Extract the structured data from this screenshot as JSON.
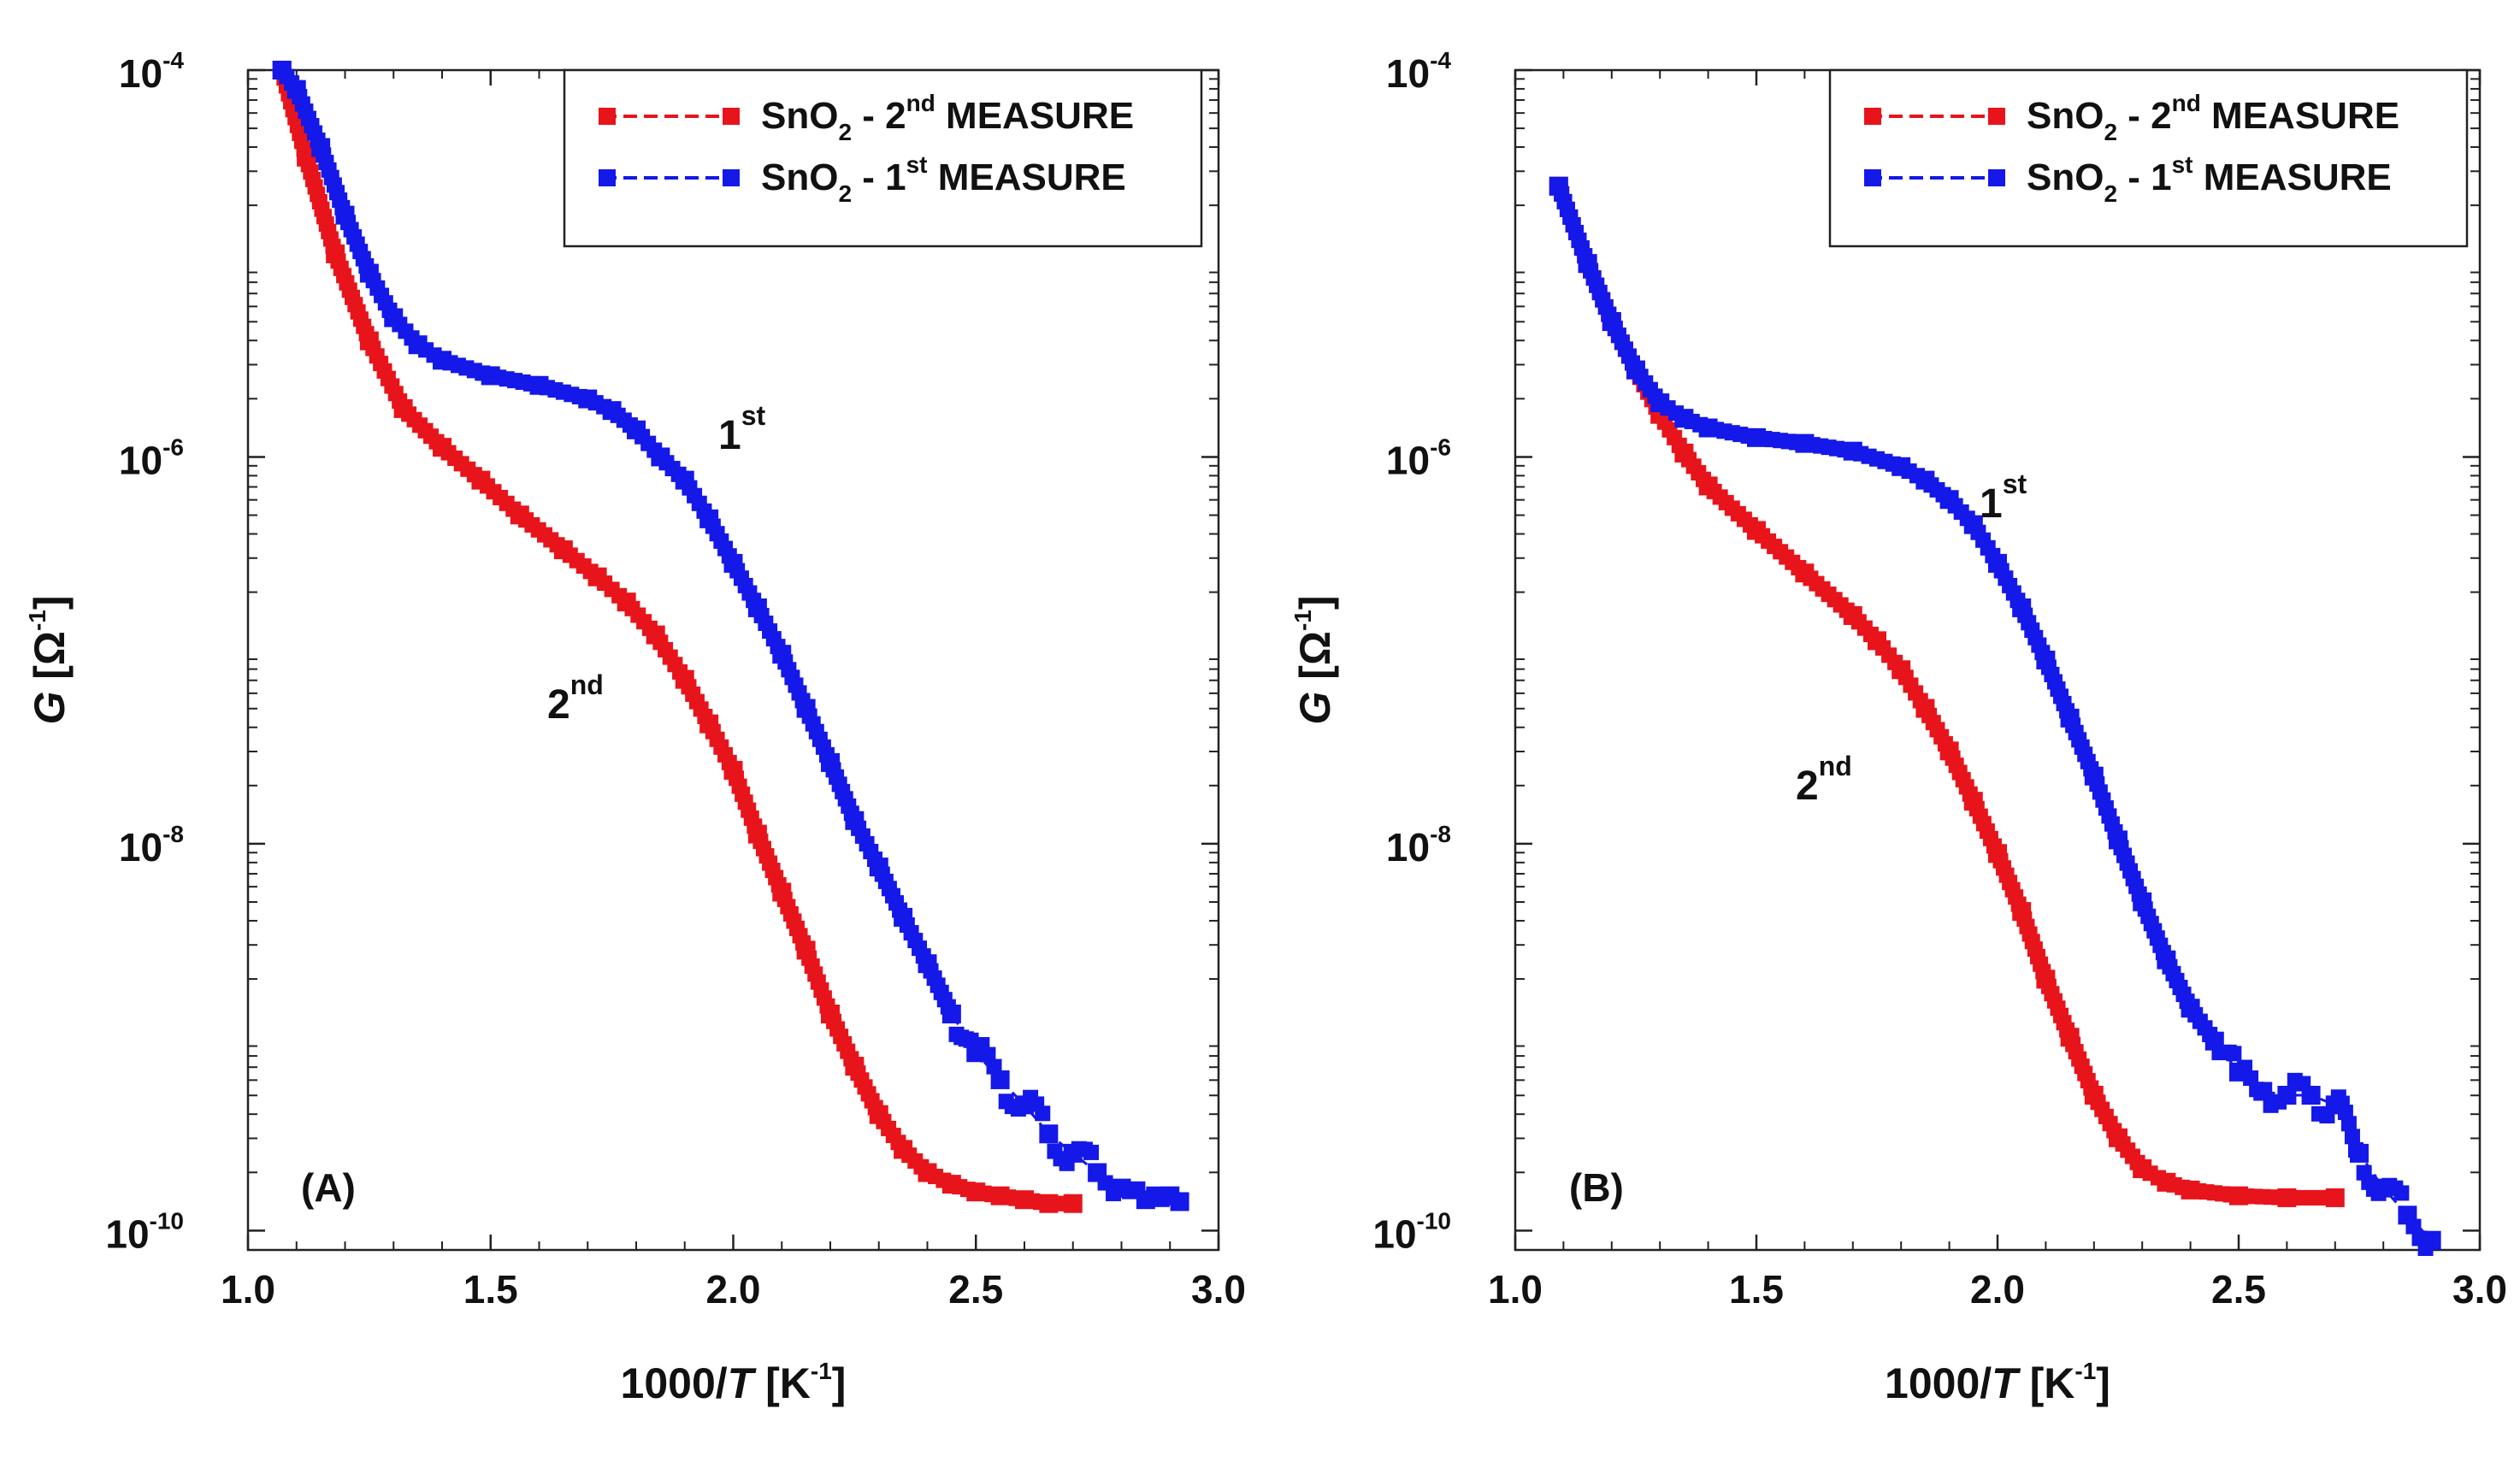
{
  "chart_data": [
    {
      "type": "scatter",
      "panel_label": "(A)",
      "xlabel": {
        "main": "1000/",
        "italic": "T",
        "unit_open": " [K",
        "unit_exp": "-1",
        "unit_close": "]"
      },
      "ylabel": {
        "main": "G",
        "unit_open": " [Ω",
        "unit_exp": "-1",
        "unit_close": "]"
      },
      "x_ticks": [
        "1.0",
        "1.5",
        "2.0",
        "2.5",
        "3.0"
      ],
      "y_ticks": [
        {
          "base": "10",
          "exp": "-4"
        },
        {
          "base": "10",
          "exp": "-6"
        },
        {
          "base": "10",
          "exp": "-8"
        },
        {
          "base": "10",
          "exp": "-10"
        }
      ],
      "xlim": [
        1.0,
        3.0
      ],
      "ylim_log10": [
        -10.1,
        -4.0
      ],
      "series": [
        {
          "name": "SnO2 - 2nd MEASURE",
          "legend": {
            "pre": "SnO",
            "sub": "2",
            "mid": " - 2",
            "sup": "nd",
            "post": " MEASURE"
          },
          "color": "#e8141b",
          "x": [
            1.07,
            1.12,
            1.18,
            1.25,
            1.32,
            1.4,
            1.48,
            1.56,
            1.65,
            1.72,
            1.78,
            1.84,
            1.9,
            1.95,
            2.0,
            2.05,
            2.1,
            2.15,
            2.2,
            2.25,
            2.3,
            2.35,
            2.4,
            2.45,
            2.5,
            2.55,
            2.6,
            2.65,
            2.7
          ],
          "log10_y": [
            -4.0,
            -4.45,
            -4.95,
            -5.4,
            -5.75,
            -5.95,
            -6.12,
            -6.3,
            -6.48,
            -6.62,
            -6.75,
            -6.92,
            -7.15,
            -7.38,
            -7.62,
            -7.95,
            -8.25,
            -8.55,
            -8.88,
            -9.15,
            -9.4,
            -9.58,
            -9.7,
            -9.76,
            -9.8,
            -9.82,
            -9.84,
            -9.86,
            -9.86
          ]
        },
        {
          "name": "SnO2 - 1st MEASURE",
          "legend": {
            "pre": "SnO",
            "sub": "2",
            "mid": " - 1",
            "sup": "st",
            "post": " MEASURE"
          },
          "color": "#1418e8",
          "x": [
            1.07,
            1.1,
            1.15,
            1.2,
            1.25,
            1.3,
            1.35,
            1.4,
            1.5,
            1.6,
            1.7,
            1.75,
            1.8,
            1.85,
            1.9,
            1.95,
            2.0,
            2.05,
            2.1,
            2.15,
            2.2,
            2.25,
            2.3,
            2.35,
            2.4,
            2.45,
            2.5,
            2.55,
            2.6,
            2.65,
            2.7,
            2.75,
            2.8,
            2.85,
            2.9,
            2.92
          ],
          "log10_y": [
            -4.0,
            -4.1,
            -4.4,
            -4.75,
            -5.05,
            -5.28,
            -5.42,
            -5.5,
            -5.58,
            -5.63,
            -5.7,
            -5.76,
            -5.86,
            -6.0,
            -6.12,
            -6.32,
            -6.55,
            -6.78,
            -7.02,
            -7.3,
            -7.58,
            -7.88,
            -8.12,
            -8.38,
            -8.62,
            -8.88,
            -9.08,
            -9.22,
            -9.35,
            -9.5,
            -9.6,
            -9.7,
            -9.78,
            -9.84,
            -9.82,
            -9.85
          ]
        }
      ],
      "annotations": [
        {
          "base": "1",
          "sup": "st",
          "near": "1st curve knee"
        },
        {
          "base": "2",
          "sup": "nd",
          "near": "2nd curve knee"
        }
      ]
    },
    {
      "type": "scatter",
      "panel_label": "(B)",
      "xlabel": {
        "main": "1000/",
        "italic": "T",
        "unit_open": " [K",
        "unit_exp": "-1",
        "unit_close": "]"
      },
      "ylabel": {
        "main": "G",
        "unit_open": " [Ω",
        "unit_exp": "-1",
        "unit_close": "]"
      },
      "x_ticks": [
        "1.0",
        "1.5",
        "2.0",
        "2.5",
        "3.0"
      ],
      "y_ticks": [
        {
          "base": "10",
          "exp": "-4"
        },
        {
          "base": "10",
          "exp": "-6"
        },
        {
          "base": "10",
          "exp": "-8"
        },
        {
          "base": "10",
          "exp": "-10"
        }
      ],
      "xlim": [
        1.0,
        3.0
      ],
      "ylim_log10": [
        -10.1,
        -4.0
      ],
      "series": [
        {
          "name": "SnO2 - 2nd MEASURE",
          "legend": {
            "pre": "SnO",
            "sub": "2",
            "mid": " - 2",
            "sup": "nd",
            "post": " MEASURE"
          },
          "color": "#e8141b",
          "x": [
            1.09,
            1.15,
            1.2,
            1.25,
            1.3,
            1.35,
            1.4,
            1.5,
            1.6,
            1.7,
            1.75,
            1.8,
            1.85,
            1.9,
            1.95,
            2.0,
            2.05,
            2.1,
            2.15,
            2.2,
            2.25,
            2.3,
            2.35,
            2.4,
            2.5,
            2.6,
            2.7
          ],
          "log10_y": [
            -4.6,
            -5.0,
            -5.3,
            -5.55,
            -5.78,
            -5.98,
            -6.15,
            -6.38,
            -6.6,
            -6.82,
            -6.95,
            -7.1,
            -7.3,
            -7.52,
            -7.78,
            -8.05,
            -8.35,
            -8.7,
            -9.0,
            -9.3,
            -9.52,
            -9.68,
            -9.75,
            -9.79,
            -9.82,
            -9.83,
            -9.83
          ]
        },
        {
          "name": "SnO2 - 1st MEASURE",
          "legend": {
            "pre": "SnO",
            "sub": "2",
            "mid": " - 1",
            "sup": "st",
            "post": " MEASURE"
          },
          "color": "#1418e8",
          "x": [
            1.09,
            1.15,
            1.2,
            1.25,
            1.3,
            1.35,
            1.4,
            1.5,
            1.6,
            1.7,
            1.8,
            1.85,
            1.9,
            1.95,
            2.0,
            2.05,
            2.1,
            2.15,
            2.2,
            2.25,
            2.3,
            2.35,
            2.4,
            2.45,
            2.5,
            2.55,
            2.6,
            2.65,
            2.7,
            2.75,
            2.8,
            2.85,
            2.9
          ],
          "log10_y": [
            -4.6,
            -5.0,
            -5.3,
            -5.55,
            -5.72,
            -5.8,
            -5.85,
            -5.9,
            -5.93,
            -5.97,
            -6.05,
            -6.12,
            -6.22,
            -6.35,
            -6.55,
            -6.78,
            -7.05,
            -7.35,
            -7.65,
            -7.98,
            -8.3,
            -8.6,
            -8.85,
            -9.02,
            -9.18,
            -9.28,
            -9.3,
            -9.3,
            -9.35,
            -9.6,
            -9.78,
            -9.92,
            -10.05
          ]
        }
      ],
      "annotations": [
        {
          "base": "1",
          "sup": "st",
          "near": "1st curve knee"
        },
        {
          "base": "2",
          "sup": "nd",
          "near": "2nd curve knee"
        }
      ]
    }
  ]
}
